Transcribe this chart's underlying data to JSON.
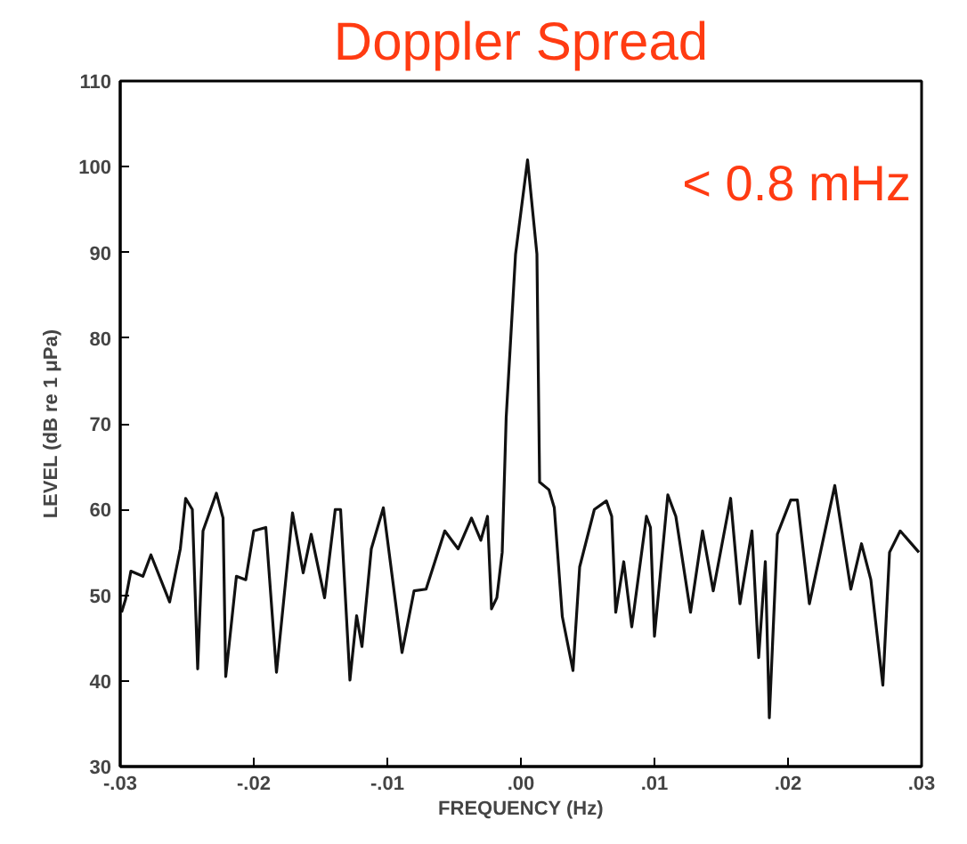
{
  "chart_data": {
    "type": "line",
    "title": "Doppler Spread",
    "xlabel": "FREQUENCY (Hz)",
    "ylabel": "LEVEL (dB re 1 μPa)",
    "annotations": [
      "< 0.8 mHz"
    ],
    "xlim": [
      -0.03,
      0.03
    ],
    "xticks": [
      {
        "value": -0.03,
        "label": "-.03"
      },
      {
        "value": -0.02,
        "label": "-.02"
      },
      {
        "value": -0.01,
        "label": "-.01"
      },
      {
        "value": 0,
        "label": ".00"
      },
      {
        "value": 0.01,
        "label": ".01"
      },
      {
        "value": 0.02,
        "label": ".02"
      },
      {
        "value": 0.03,
        "label": ".03"
      }
    ],
    "ylim": [
      30,
      110
    ],
    "yticks": [
      30,
      40,
      50,
      60,
      70,
      80,
      90,
      100,
      110
    ],
    "grid": false,
    "marker": "none",
    "line_style": "solid",
    "series": [
      {
        "color": "#111111",
        "x": [
          -0.0299,
          -0.0296,
          -0.0292,
          -0.0283,
          -0.0277,
          -0.0263,
          -0.0255,
          -0.0251,
          -0.0246,
          -0.0242,
          -0.0238,
          -0.0228,
          -0.0223,
          -0.0221,
          -0.0213,
          -0.0206,
          -0.02,
          -0.0191,
          -0.0183,
          -0.0171,
          -0.0163,
          -0.0157,
          -0.0147,
          -0.0139,
          -0.0135,
          -0.0128,
          -0.0123,
          -0.0119,
          -0.0112,
          -0.0103,
          -0.0089,
          -0.008,
          -0.0071,
          -0.0057,
          -0.0047,
          -0.0037,
          -0.003,
          -0.0025,
          -0.0022,
          -0.0018,
          -0.0014,
          -0.0011,
          -0.0004,
          0.0005,
          0.0012,
          0.0014,
          0.0021,
          0.0025,
          0.0031,
          0.0039,
          0.0044,
          0.0055,
          0.0064,
          0.0068,
          0.0071,
          0.0077,
          0.0083,
          0.0094,
          0.0097,
          0.01,
          0.011,
          0.0116,
          0.0127,
          0.0136,
          0.0144,
          0.0157,
          0.0164,
          0.0173,
          0.0178,
          0.0183,
          0.0186,
          0.0192,
          0.0202,
          0.0207,
          0.0216,
          0.0235,
          0.0247,
          0.0255,
          0.0262,
          0.0271,
          0.0276,
          0.0284,
          0.0298
        ],
        "values": [
          48,
          49.5,
          52.8,
          52.2,
          54.7,
          49.2,
          55.4,
          61.3,
          60,
          41.4,
          57.5,
          61.9,
          59,
          40.5,
          52.2,
          51.8,
          57.5,
          57.9,
          41,
          59.6,
          52.6,
          57.1,
          49.7,
          60,
          60,
          40.1,
          47.6,
          44,
          55.4,
          60.2,
          43.3,
          50.5,
          50.7,
          57.5,
          55.4,
          59,
          56.4,
          59.2,
          48.4,
          49.7,
          55,
          70.8,
          89.8,
          100.8,
          89.8,
          63.2,
          62.3,
          60.2,
          47.5,
          41.2,
          53.3,
          60,
          61,
          59.2,
          48,
          53.9,
          46.3,
          59.2,
          57.9,
          45.2,
          61.7,
          59.2,
          48,
          57.5,
          50.5,
          61.3,
          49,
          57.5,
          42.7,
          53.9,
          35.7,
          57.1,
          61.1,
          61.1,
          49,
          62.8,
          50.7,
          56,
          51.8,
          39.5,
          55,
          57.5,
          55
        ]
      }
    ]
  }
}
